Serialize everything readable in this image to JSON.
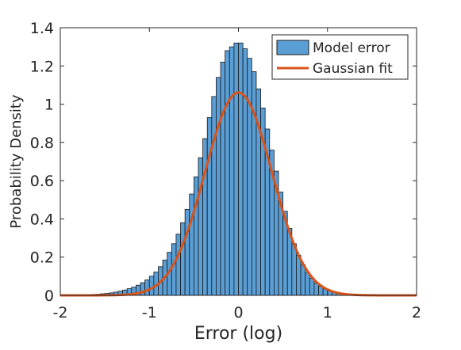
{
  "chart_data": {
    "type": "bar",
    "title": "",
    "xlabel": "Error (log)",
    "ylabel": "Probability Density",
    "xlim": [
      -2,
      2
    ],
    "ylim": [
      0,
      1.4
    ],
    "x_ticks": [
      -2,
      -1,
      0,
      1,
      2
    ],
    "x_tick_labels": [
      "-2",
      "-1",
      "0",
      "1",
      "2"
    ],
    "y_ticks": [
      0,
      0.2,
      0.4,
      0.6,
      0.8,
      1,
      1.2,
      1.4
    ],
    "y_tick_labels": [
      "0",
      "0.2",
      "0.4",
      "0.6",
      "0.8",
      "1",
      "1.2",
      "1.4"
    ],
    "grid": false,
    "legend_position": "top-right",
    "histogram": {
      "name": "Model error",
      "color": "#5a9ed6",
      "edge_color": "#1a1a1a",
      "bin_width": 0.05,
      "bin_centers": [
        -1.975,
        -1.925,
        -1.875,
        -1.825,
        -1.775,
        -1.725,
        -1.675,
        -1.625,
        -1.575,
        -1.525,
        -1.475,
        -1.425,
        -1.375,
        -1.325,
        -1.275,
        -1.225,
        -1.175,
        -1.125,
        -1.075,
        -1.025,
        -0.975,
        -0.925,
        -0.875,
        -0.825,
        -0.775,
        -0.725,
        -0.675,
        -0.625,
        -0.575,
        -0.525,
        -0.475,
        -0.425,
        -0.375,
        -0.325,
        -0.275,
        -0.225,
        -0.175,
        -0.125,
        -0.075,
        -0.025,
        0.025,
        0.075,
        0.125,
        0.175,
        0.225,
        0.275,
        0.325,
        0.375,
        0.425,
        0.475,
        0.525,
        0.575,
        0.625,
        0.675,
        0.725,
        0.775,
        0.825,
        0.875,
        0.925,
        0.975,
        1.025,
        1.075,
        1.125,
        1.175,
        1.225,
        1.275,
        1.325,
        1.375,
        1.425,
        1.475,
        1.525,
        1.575,
        1.625,
        1.675,
        1.725,
        1.775,
        1.825,
        1.875,
        1.925,
        1.975
      ],
      "values": [
        0.001,
        0.001,
        0.001,
        0.002,
        0.002,
        0.003,
        0.004,
        0.005,
        0.006,
        0.008,
        0.01,
        0.013,
        0.017,
        0.022,
        0.028,
        0.035,
        0.043,
        0.053,
        0.066,
        0.081,
        0.1,
        0.122,
        0.15,
        0.185,
        0.225,
        0.27,
        0.32,
        0.38,
        0.45,
        0.53,
        0.62,
        0.72,
        0.82,
        0.93,
        1.04,
        1.14,
        1.22,
        1.28,
        1.3,
        1.32,
        1.32,
        1.29,
        1.24,
        1.17,
        1.08,
        0.98,
        0.87,
        0.76,
        0.65,
        0.54,
        0.44,
        0.35,
        0.27,
        0.21,
        0.16,
        0.12,
        0.09,
        0.065,
        0.047,
        0.034,
        0.024,
        0.017,
        0.012,
        0.008,
        0.006,
        0.004,
        0.003,
        0.002,
        0.002,
        0.001,
        0.001,
        0.001,
        0.001,
        0.001,
        0.001,
        0.001,
        0.001,
        0.001,
        0.001,
        0.001
      ]
    },
    "fit": {
      "name": "Gaussian fit",
      "color": "#d95319",
      "mean": 0,
      "sd": 0.376
    }
  },
  "legend": {
    "items": [
      {
        "label": "Model error",
        "color": "#5a9ed6"
      },
      {
        "label": "Gaussian fit",
        "color": "#d95319"
      }
    ]
  }
}
